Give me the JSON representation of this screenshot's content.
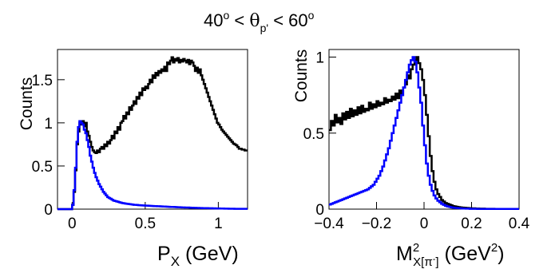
{
  "chart_data": [
    {
      "type": "line",
      "xlim": [
        -0.1,
        1.2
      ],
      "ylim": [
        0,
        1.85
      ],
      "x_ticks": [
        0,
        0.5,
        1
      ],
      "x_tick_labels": [
        "0",
        "0.5",
        "1"
      ],
      "y_ticks": [
        0,
        0.5,
        1,
        1.5
      ],
      "y_tick_labels": [
        "0",
        "0.5",
        "1",
        "1.5"
      ],
      "ylabel": "Counts",
      "grid": false,
      "series": [
        {
          "color": "#000000",
          "x": [
            -0.1,
            -0.09,
            -0.08,
            -0.07,
            -0.06,
            -0.05,
            -0.04,
            -0.03,
            -0.02,
            -0.01,
            0,
            0.01,
            0.02,
            0.03,
            0.04,
            0.05,
            0.06,
            0.07,
            0.08,
            0.09,
            0.1,
            0.11,
            0.12,
            0.13,
            0.14,
            0.15,
            0.16,
            0.17,
            0.18,
            0.19,
            0.2,
            0.21,
            0.22,
            0.23,
            0.24,
            0.25,
            0.26,
            0.27,
            0.28,
            0.29,
            0.3,
            0.31,
            0.32,
            0.33,
            0.34,
            0.35,
            0.36,
            0.37,
            0.38,
            0.39,
            0.4,
            0.41,
            0.42,
            0.43,
            0.44,
            0.45,
            0.46,
            0.47,
            0.48,
            0.49,
            0.5,
            0.51,
            0.52,
            0.53,
            0.54,
            0.55,
            0.56,
            0.57,
            0.58,
            0.59,
            0.6,
            0.61,
            0.62,
            0.63,
            0.64,
            0.65,
            0.66,
            0.67,
            0.68,
            0.69,
            0.7,
            0.71,
            0.72,
            0.73,
            0.74,
            0.75,
            0.76,
            0.77,
            0.78,
            0.79,
            0.8,
            0.81,
            0.82,
            0.83,
            0.84,
            0.85,
            0.86,
            0.87,
            0.88,
            0.89,
            0.9,
            0.91,
            0.92,
            0.93,
            0.94,
            0.95,
            0.96,
            0.97,
            0.98,
            0.99,
            1,
            1.01,
            1.02,
            1.03,
            1.04,
            1.05,
            1.06,
            1.07,
            1.08,
            1.09,
            1.1,
            1.11,
            1.12,
            1.13,
            1.14,
            1.15,
            1.16,
            1.17,
            1.18,
            1.19
          ],
          "y": [
            0,
            0,
            0,
            0,
            0,
            0,
            0,
            0,
            0,
            0,
            0.05,
            0.2,
            0.45,
            0.75,
            0.9,
            1.0,
            0.98,
            1.02,
            0.96,
            1.0,
            0.9,
            0.85,
            0.78,
            0.72,
            0.68,
            0.66,
            0.65,
            0.68,
            0.66,
            0.7,
            0.72,
            0.7,
            0.75,
            0.73,
            0.78,
            0.76,
            0.8,
            0.85,
            0.82,
            0.9,
            0.88,
            0.95,
            0.92,
            1.0,
            1.02,
            1.08,
            1.05,
            1.12,
            1.1,
            1.18,
            1.15,
            1.2,
            1.25,
            1.22,
            1.3,
            1.28,
            1.35,
            1.32,
            1.4,
            1.38,
            1.42,
            1.4,
            1.45,
            1.5,
            1.47,
            1.55,
            1.52,
            1.58,
            1.55,
            1.6,
            1.58,
            1.62,
            1.6,
            1.65,
            1.6,
            1.7,
            1.68,
            1.72,
            1.76,
            1.7,
            1.74,
            1.72,
            1.75,
            1.7,
            1.73,
            1.71,
            1.74,
            1.72,
            1.7,
            1.73,
            1.68,
            1.72,
            1.7,
            1.66,
            1.6,
            1.64,
            1.58,
            1.62,
            1.55,
            1.5,
            1.45,
            1.4,
            1.35,
            1.3,
            1.25,
            1.2,
            1.15,
            1.1,
            1.05,
            1.0,
            0.98,
            0.95,
            0.92,
            0.9,
            0.88,
            0.86,
            0.84,
            0.82,
            0.8,
            0.78,
            0.76,
            0.75,
            0.74,
            0.72,
            0.7,
            0.7,
            0.69,
            0.69,
            0.68,
            0.68
          ]
        },
        {
          "color": "#0000ff",
          "x": [
            -0.1,
            -0.09,
            -0.08,
            -0.07,
            -0.06,
            -0.05,
            -0.04,
            -0.03,
            -0.02,
            -0.01,
            0,
            0.01,
            0.02,
            0.03,
            0.04,
            0.05,
            0.06,
            0.07,
            0.08,
            0.09,
            0.1,
            0.11,
            0.12,
            0.13,
            0.14,
            0.15,
            0.16,
            0.17,
            0.18,
            0.19,
            0.2,
            0.21,
            0.22,
            0.23,
            0.24,
            0.25,
            0.26,
            0.27,
            0.28,
            0.29,
            0.3,
            0.31,
            0.32,
            0.33,
            0.34,
            0.35,
            0.36,
            0.37,
            0.38,
            0.39,
            0.4,
            0.41,
            0.42,
            0.43,
            0.44,
            0.45,
            0.46,
            0.47,
            0.48,
            0.49,
            0.5,
            0.51,
            0.52,
            0.53,
            0.54,
            0.55,
            0.56,
            0.57,
            0.58,
            0.59,
            0.6,
            0.61,
            0.62,
            0.63,
            0.64,
            0.65,
            0.66,
            0.67,
            0.68,
            0.69,
            0.7,
            0.71,
            0.72,
            0.73,
            0.74,
            0.75,
            0.76,
            0.77,
            0.78,
            0.79,
            0.8,
            0.81,
            0.82,
            0.83,
            0.84,
            0.85,
            0.86,
            0.87,
            0.88,
            0.89,
            0.9,
            0.91,
            0.92,
            0.93,
            0.94,
            0.95,
            0.96,
            0.97,
            0.98,
            0.99,
            1,
            1.01,
            1.02,
            1.03,
            1.04,
            1.05,
            1.06,
            1.07,
            1.08,
            1.09,
            1.1,
            1.11,
            1.12,
            1.13,
            1.14,
            1.15,
            1.16,
            1.17,
            1.18,
            1.19
          ],
          "y": [
            0,
            0,
            0,
            0,
            0,
            0,
            0,
            0,
            0,
            0,
            0.05,
            0.22,
            0.48,
            0.78,
            0.95,
            1.02,
            1.0,
            0.98,
            0.92,
            0.88,
            0.8,
            0.72,
            0.62,
            0.55,
            0.48,
            0.42,
            0.37,
            0.33,
            0.29,
            0.26,
            0.23,
            0.2,
            0.18,
            0.16,
            0.14,
            0.13,
            0.12,
            0.11,
            0.1,
            0.095,
            0.09,
            0.085,
            0.08,
            0.075,
            0.07,
            0.068,
            0.065,
            0.062,
            0.06,
            0.058,
            0.055,
            0.053,
            0.05,
            0.05,
            0.048,
            0.046,
            0.045,
            0.044,
            0.043,
            0.042,
            0.04,
            0.04,
            0.039,
            0.038,
            0.037,
            0.036,
            0.035,
            0.035,
            0.034,
            0.033,
            0.032,
            0.031,
            0.03,
            0.03,
            0.029,
            0.028,
            0.027,
            0.026,
            0.025,
            0.025,
            0.024,
            0.023,
            0.022,
            0.022,
            0.021,
            0.02,
            0.02,
            0.019,
            0.018,
            0.018,
            0.017,
            0.016,
            0.016,
            0.015,
            0.015,
            0.014,
            0.014,
            0.013,
            0.013,
            0.012,
            0.012,
            0.011,
            0.011,
            0.01,
            0.01,
            0.01,
            0.009,
            0.009,
            0.008,
            0.008,
            0.008,
            0.007,
            0.007,
            0.007,
            0.006,
            0.006,
            0.006,
            0.005,
            0.005,
            0.005,
            0.005,
            0.004,
            0.004,
            0.004,
            0.004,
            0.003,
            0.003,
            0.003,
            0.003,
            0.003
          ]
        }
      ]
    },
    {
      "type": "line",
      "xlim": [
        -0.4,
        0.4
      ],
      "ylim": [
        0,
        1.05
      ],
      "x_ticks": [
        -0.4,
        -0.2,
        0,
        0.2,
        0.4
      ],
      "x_tick_labels": [
        "−0.4",
        "−0.2",
        "0",
        "0.2",
        "0.4"
      ],
      "y_ticks": [
        0,
        0.5,
        1
      ],
      "y_tick_labels": [
        "0",
        "0.5",
        "1"
      ],
      "ylabel": "Counts",
      "grid": false,
      "series": [
        {
          "color": "#000000",
          "x": [
            -0.4,
            -0.392,
            -0.384,
            -0.376,
            -0.368,
            -0.36,
            -0.352,
            -0.344,
            -0.336,
            -0.328,
            -0.32,
            -0.312,
            -0.304,
            -0.296,
            -0.288,
            -0.28,
            -0.272,
            -0.264,
            -0.256,
            -0.248,
            -0.24,
            -0.232,
            -0.224,
            -0.216,
            -0.208,
            -0.2,
            -0.192,
            -0.184,
            -0.176,
            -0.168,
            -0.16,
            -0.152,
            -0.144,
            -0.136,
            -0.128,
            -0.12,
            -0.112,
            -0.104,
            -0.096,
            -0.088,
            -0.08,
            -0.072,
            -0.064,
            -0.056,
            -0.048,
            -0.04,
            -0.032,
            -0.024,
            -0.016,
            -0.008,
            0,
            0.008,
            0.016,
            0.024,
            0.032,
            0.04,
            0.048,
            0.056,
            0.064,
            0.072,
            0.08,
            0.088,
            0.096,
            0.104,
            0.112,
            0.12,
            0.128,
            0.136,
            0.144,
            0.152,
            0.16,
            0.168,
            0.176,
            0.184,
            0.192,
            0.2,
            0.208,
            0.216,
            0.224,
            0.232,
            0.24,
            0.248,
            0.256,
            0.264,
            0.272,
            0.28,
            0.288,
            0.296,
            0.304,
            0.312,
            0.32,
            0.328,
            0.336,
            0.344,
            0.352,
            0.36,
            0.368,
            0.376,
            0.384,
            0.392
          ],
          "y": [
            0.52,
            0.58,
            0.55,
            0.62,
            0.57,
            0.6,
            0.56,
            0.63,
            0.59,
            0.64,
            0.6,
            0.66,
            0.61,
            0.65,
            0.62,
            0.67,
            0.63,
            0.68,
            0.64,
            0.66,
            0.65,
            0.7,
            0.66,
            0.69,
            0.67,
            0.71,
            0.68,
            0.7,
            0.69,
            0.73,
            0.7,
            0.72,
            0.71,
            0.74,
            0.72,
            0.76,
            0.73,
            0.78,
            0.75,
            0.8,
            0.82,
            0.88,
            0.86,
            0.92,
            0.95,
            0.98,
            1.0,
            0.96,
            0.92,
            0.85,
            0.75,
            0.62,
            0.48,
            0.35,
            0.25,
            0.18,
            0.13,
            0.1,
            0.08,
            0.06,
            0.05,
            0.04,
            0.035,
            0.03,
            0.025,
            0.02,
            0.018,
            0.015,
            0.013,
            0.011,
            0.01,
            0.009,
            0.008,
            0.007,
            0.006,
            0.005,
            0.005,
            0.004,
            0.004,
            0.003,
            0.003,
            0.003,
            0.002,
            0.002,
            0.002,
            0.002,
            0.002,
            0.001,
            0.001,
            0.001,
            0.001,
            0.001,
            0.001,
            0.001,
            0.001,
            0.001,
            0.001,
            0.001,
            0.001,
            0.001
          ]
        },
        {
          "color": "#0000ff",
          "x": [
            -0.4,
            -0.392,
            -0.384,
            -0.376,
            -0.368,
            -0.36,
            -0.352,
            -0.344,
            -0.336,
            -0.328,
            -0.32,
            -0.312,
            -0.304,
            -0.296,
            -0.288,
            -0.28,
            -0.272,
            -0.264,
            -0.256,
            -0.248,
            -0.24,
            -0.232,
            -0.224,
            -0.216,
            -0.208,
            -0.2,
            -0.192,
            -0.184,
            -0.176,
            -0.168,
            -0.16,
            -0.152,
            -0.144,
            -0.136,
            -0.128,
            -0.12,
            -0.112,
            -0.104,
            -0.096,
            -0.088,
            -0.08,
            -0.072,
            -0.064,
            -0.056,
            -0.048,
            -0.04,
            -0.032,
            -0.024,
            -0.016,
            -0.008,
            0,
            0.008,
            0.016,
            0.024,
            0.032,
            0.04,
            0.048,
            0.056,
            0.064,
            0.072,
            0.08,
            0.088,
            0.096,
            0.104,
            0.112,
            0.12,
            0.128,
            0.136,
            0.144,
            0.152,
            0.16,
            0.168,
            0.176,
            0.184,
            0.192,
            0.2,
            0.208,
            0.216,
            0.224,
            0.232,
            0.24,
            0.248,
            0.256,
            0.264,
            0.272,
            0.28,
            0.288,
            0.296,
            0.304,
            0.312,
            0.32,
            0.328,
            0.336,
            0.344,
            0.352,
            0.36,
            0.368,
            0.376,
            0.384,
            0.392
          ],
          "y": [
            0.03,
            0.035,
            0.04,
            0.045,
            0.05,
            0.055,
            0.06,
            0.065,
            0.07,
            0.075,
            0.08,
            0.085,
            0.09,
            0.095,
            0.1,
            0.105,
            0.11,
            0.115,
            0.12,
            0.125,
            0.13,
            0.14,
            0.15,
            0.16,
            0.18,
            0.2,
            0.22,
            0.25,
            0.28,
            0.32,
            0.36,
            0.4,
            0.45,
            0.5,
            0.55,
            0.6,
            0.65,
            0.7,
            0.75,
            0.8,
            0.85,
            0.9,
            0.95,
            0.98,
            1.0,
            0.97,
            0.9,
            0.8,
            0.7,
            0.55,
            0.42,
            0.3,
            0.22,
            0.16,
            0.12,
            0.09,
            0.07,
            0.055,
            0.045,
            0.035,
            0.028,
            0.022,
            0.018,
            0.015,
            0.012,
            0.01,
            0.008,
            0.007,
            0.006,
            0.005,
            0.004,
            0.004,
            0.003,
            0.003,
            0.002,
            0.002,
            0.002,
            0.002,
            0.001,
            0.001,
            0.001,
            0.001,
            0.001,
            0.001,
            0.001,
            0.001,
            0.001,
            0.001,
            0.001,
            0.001,
            0.001,
            0.001,
            0.001,
            0.001,
            0.001,
            0.001,
            0.001,
            0.001,
            0.001,
            0.001
          ]
        }
      ]
    }
  ]
}
